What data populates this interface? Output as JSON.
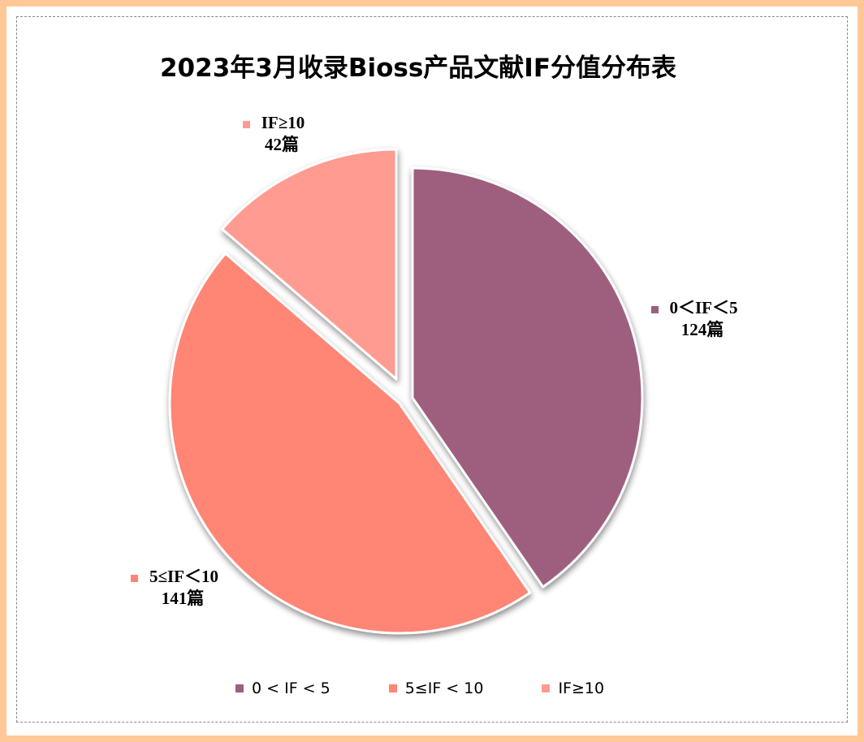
{
  "chart_data": {
    "type": "pie",
    "title": "2023年3月收录Bioss产品文献IF分值分布表",
    "categories": [
      "0＜IF＜5",
      "5≤IF＜10",
      "IF≥10"
    ],
    "values": [
      124,
      141,
      42
    ],
    "unit": "篇",
    "data_labels": [
      "124篇",
      "141篇",
      "42篇"
    ],
    "legend_labels": [
      "0 < IF < 5",
      "5≤IF < 10",
      "IF≥10"
    ],
    "colors": [
      "#9e5f7e",
      "#ff8575",
      "#ff9b90"
    ],
    "exploded": true,
    "legend": "bottom"
  },
  "frame_color": "#ffc896"
}
